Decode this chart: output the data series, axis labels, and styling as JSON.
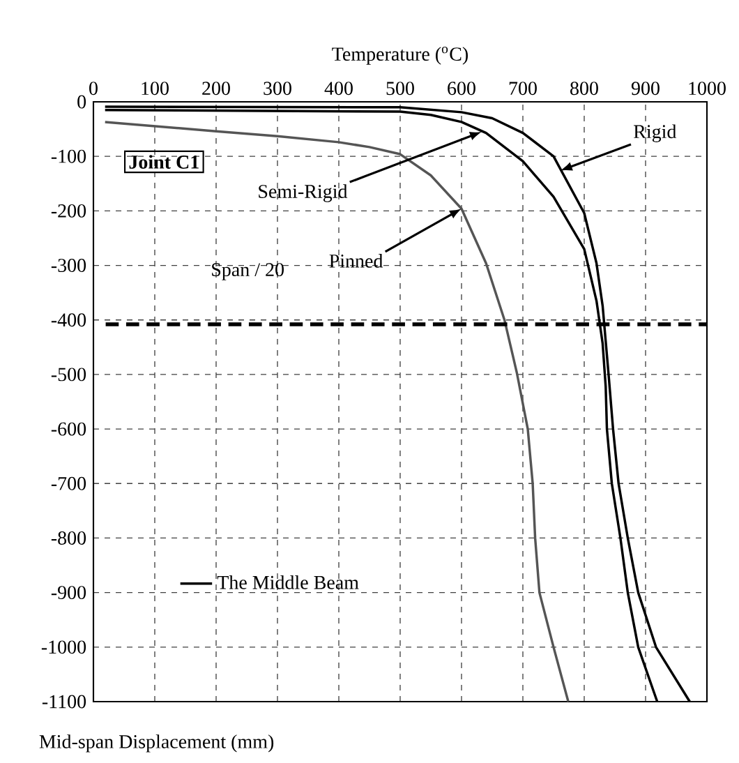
{
  "chart_data": {
    "type": "line",
    "xlabel": "Temperature ($^{o}$C)",
    "ylabel": "Mid-span Displacement (mm)",
    "xlim": [
      0,
      1000
    ],
    "ylim": [
      -1100,
      0
    ],
    "xticks": [
      0,
      100,
      200,
      300,
      400,
      500,
      600,
      700,
      800,
      900,
      1000
    ],
    "yticks": [
      -1100,
      -1000,
      -900,
      -800,
      -700,
      -600,
      -500,
      -400,
      -300,
      -200,
      -100,
      0
    ],
    "grid": true,
    "legend": "bottom left",
    "line_style": "solid",
    "marker": "none",
    "series": [
      {
        "name": "The Middle Beam",
        "color": "#000000",
        "x": [
          19,
          500,
          600,
          650,
          700,
          750,
          800,
          820,
          830,
          840,
          847,
          856,
          871,
          888,
          917,
          972
        ],
        "values": [
          -9,
          -10,
          -19,
          -30,
          -57,
          -100,
          -204,
          -296,
          -374,
          -504,
          -600,
          -700,
          -800,
          -900,
          -1000,
          -1100
        ]
      },
      {
        "color": "#000000",
        "x": [
          19,
          500,
          550,
          600,
          640,
          700,
          750,
          800,
          820,
          830,
          835,
          837,
          845,
          859,
          871,
          888,
          919
        ],
        "values": [
          -15,
          -18,
          -24,
          -37,
          -57,
          -109,
          -174,
          -270,
          -365,
          -443,
          -522,
          -600,
          -700,
          -800,
          -900,
          -1000,
          -1100
        ]
      },
      {
        "color": "#555555",
        "x": [
          19,
          200,
          300,
          400,
          450,
          500,
          550,
          600,
          640,
          670,
          690,
          708,
          716,
          720,
          727,
          750,
          774
        ],
        "values": [
          -37,
          -54,
          -63,
          -74,
          -83,
          -96,
          -135,
          -196,
          -296,
          -400,
          -496,
          -600,
          -700,
          -800,
          -900,
          -1000,
          -1100
        ]
      }
    ],
    "ref_lines": [
      {
        "axis": "y",
        "value": -408,
        "label": "Span / 20",
        "color": "#000000",
        "line_style": "dashed"
      }
    ],
    "annotations": [
      "Joint C1",
      {
        "text": "Rigid",
        "x": 761,
        "y": -126
      },
      {
        "text": "Semi-Rigid",
        "x": 633,
        "y": -55
      },
      {
        "text": "Pinned",
        "x": 600,
        "y": -196
      }
    ]
  }
}
